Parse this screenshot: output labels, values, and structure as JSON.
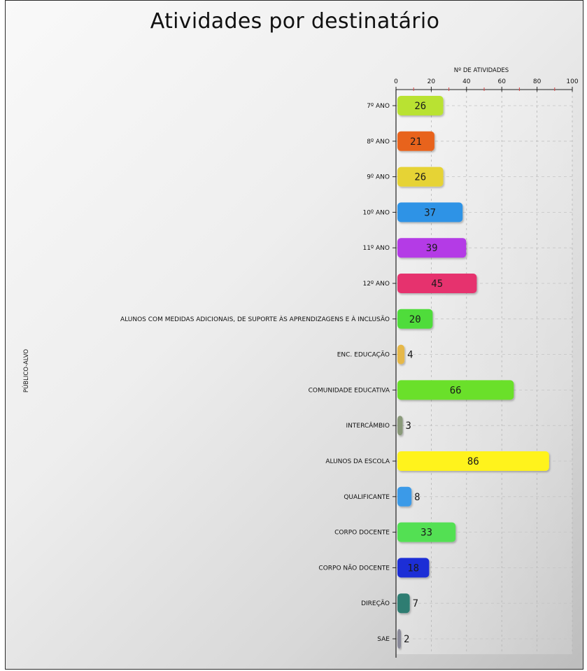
{
  "chart_data": {
    "type": "bar",
    "orientation": "horizontal",
    "title": "Atividades por destinatário",
    "xlabel": "Nº DE ATIVIDADES",
    "ylabel": "PÚBLICO-ALVO",
    "xlim": [
      0,
      100
    ],
    "xticks": [
      0,
      20,
      40,
      60,
      80,
      100
    ],
    "grid": true,
    "legend": "none",
    "categories": [
      "7º ANO",
      "8º ANO",
      "9º ANO",
      "10º ANO",
      "11º ANO",
      "12º ANO",
      "ALUNOS COM MEDIDAS ADICIONAIS, DE SUPORTE ÀS APRENDIZAGENS E À INCLUSÃO",
      "ENC. EDUCAÇÃO",
      "COMUNIDADE EDUCATIVA",
      "INTERCÂMBIO",
      "ALUNOS DA ESCOLA",
      "QUALIFICANTE",
      "CORPO DOCENTE",
      "CORPO NÃO DOCENTE",
      "DIREÇÃO",
      "SAE"
    ],
    "values": [
      26,
      21,
      26,
      37,
      39,
      45,
      20,
      4,
      66,
      3,
      86,
      8,
      33,
      18,
      7,
      2
    ],
    "colors": [
      "#b9e233",
      "#e8641e",
      "#e6d334",
      "#2f93e6",
      "#b43ae6",
      "#e6326e",
      "#4fdc3a",
      "#e6b84a",
      "#6be02a",
      "#8a9a7a",
      "#fff31a",
      "#3a9ae8",
      "#52e052",
      "#1c2fd6",
      "#2d7d72",
      "#8a8a9a"
    ]
  }
}
